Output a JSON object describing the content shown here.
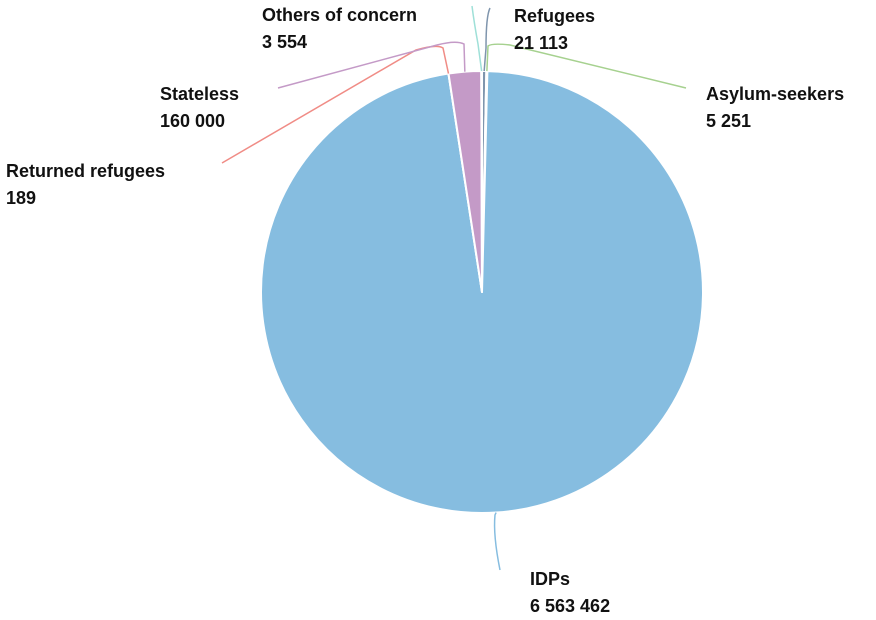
{
  "chart_data": {
    "type": "pie",
    "title": "",
    "series": [
      {
        "slices": [
          {
            "name": "Refugees",
            "value": 21113,
            "display": "21 113",
            "color": "#7f95ad"
          },
          {
            "name": "Asylum-seekers",
            "value": 5251,
            "display": "5 251",
            "color": "#a6d18f"
          },
          {
            "name": "IDPs",
            "value": 6563462,
            "display": "6 563 462",
            "color": "#86bde0"
          },
          {
            "name": "Returned refugees",
            "value": 189,
            "display": "189",
            "color": "#f08c86"
          },
          {
            "name": "Stateless",
            "value": 160000,
            "display": "160 000",
            "color": "#c49ac7"
          },
          {
            "name": "Others of concern",
            "value": 3554,
            "display": "3 554",
            "color": "#9fe0d8"
          }
        ]
      }
    ],
    "start_angle": "12 o'clock",
    "direction": "clockwise",
    "labels": "outside with leader lines",
    "legend": "none"
  }
}
